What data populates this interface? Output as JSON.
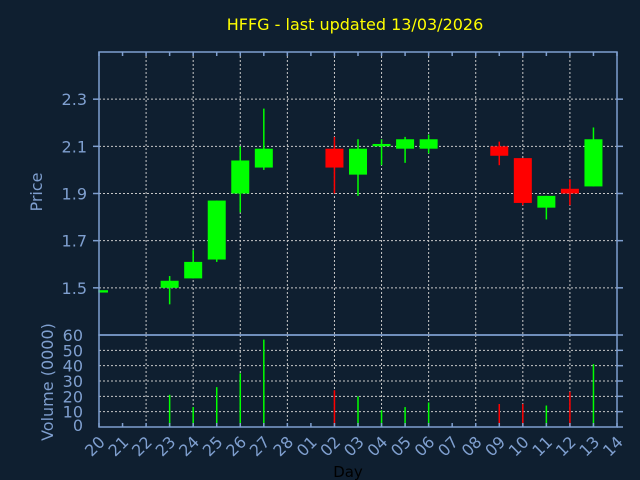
{
  "chart_data": [
    {
      "type": "candlestick",
      "title": "HFFG - last updated 13/03/2026",
      "ylabel": "Price",
      "ylim": [
        1.3,
        2.5
      ],
      "yticks": [
        "1.5",
        "1.7",
        "1.9",
        "2.1",
        "2.3"
      ],
      "grid": true,
      "up_color": "#00ff00",
      "down_color": "#ff0000",
      "x": [
        "20",
        "21",
        "22",
        "23",
        "24",
        "25",
        "26",
        "27",
        "28",
        "01",
        "02",
        "03",
        "04",
        "05",
        "06",
        "07",
        "08",
        "09",
        "10",
        "11",
        "12",
        "13",
        "14"
      ],
      "candles": [
        {
          "day": "20",
          "open": 1.48,
          "high": 1.49,
          "low": 1.48,
          "close": 1.49
        },
        {
          "day": "23",
          "open": 1.5,
          "high": 1.55,
          "low": 1.43,
          "close": 1.53
        },
        {
          "day": "24",
          "open": 1.54,
          "high": 1.66,
          "low": 1.54,
          "close": 1.61
        },
        {
          "day": "25",
          "open": 1.62,
          "high": 1.87,
          "low": 1.61,
          "close": 1.87
        },
        {
          "day": "26",
          "open": 1.9,
          "high": 2.1,
          "low": 1.82,
          "close": 2.04
        },
        {
          "day": "27",
          "open": 2.01,
          "high": 2.26,
          "low": 2.0,
          "close": 2.09
        },
        {
          "day": "02",
          "open": 2.09,
          "high": 2.14,
          "low": 1.9,
          "close": 2.01
        },
        {
          "day": "03",
          "open": 1.98,
          "high": 2.13,
          "low": 1.89,
          "close": 2.09
        },
        {
          "day": "04",
          "open": 2.1,
          "high": 2.13,
          "low": 2.02,
          "close": 2.11
        },
        {
          "day": "05",
          "open": 2.09,
          "high": 2.14,
          "low": 2.03,
          "close": 2.13
        },
        {
          "day": "06",
          "open": 2.09,
          "high": 2.15,
          "low": 2.07,
          "close": 2.13
        },
        {
          "day": "09",
          "open": 2.1,
          "high": 2.12,
          "low": 2.02,
          "close": 2.06
        },
        {
          "day": "10",
          "open": 2.05,
          "high": 2.05,
          "low": 1.85,
          "close": 1.86
        },
        {
          "day": "11",
          "open": 1.84,
          "high": 1.89,
          "low": 1.79,
          "close": 1.89
        },
        {
          "day": "12",
          "open": 1.92,
          "high": 1.96,
          "low": 1.85,
          "close": 1.9
        },
        {
          "day": "13",
          "open": 1.93,
          "high": 2.18,
          "low": 1.93,
          "close": 2.13
        }
      ]
    },
    {
      "type": "bar",
      "ylabel": "Volume (0000)",
      "xlabel": "Day",
      "ylim": [
        0,
        60
      ],
      "yticks": [
        "0",
        "10",
        "20",
        "30",
        "40",
        "50",
        "60"
      ],
      "grid": true,
      "bars": [
        {
          "day": "23",
          "value": 21,
          "color": "#00ff00"
        },
        {
          "day": "24",
          "value": 13,
          "color": "#00ff00"
        },
        {
          "day": "25",
          "value": 26,
          "color": "#00ff00"
        },
        {
          "day": "26",
          "value": 35,
          "color": "#00ff00"
        },
        {
          "day": "27",
          "value": 57,
          "color": "#00ff00"
        },
        {
          "day": "02",
          "value": 24,
          "color": "#ff0000"
        },
        {
          "day": "03",
          "value": 20,
          "color": "#00ff00"
        },
        {
          "day": "04",
          "value": 11,
          "color": "#00ff00"
        },
        {
          "day": "05",
          "value": 13,
          "color": "#00ff00"
        },
        {
          "day": "06",
          "value": 16,
          "color": "#00ff00"
        },
        {
          "day": "09",
          "value": 15,
          "color": "#ff0000"
        },
        {
          "day": "10",
          "value": 15,
          "color": "#ff0000"
        },
        {
          "day": "11",
          "value": 14,
          "color": "#00ff00"
        },
        {
          "day": "12",
          "value": 23,
          "color": "#ff0000"
        },
        {
          "day": "13",
          "value": 41,
          "color": "#00ff00"
        }
      ]
    }
  ],
  "colors": {
    "background": "#0f1f30",
    "title": "#ffff00",
    "axis": "#7f9fcf"
  }
}
